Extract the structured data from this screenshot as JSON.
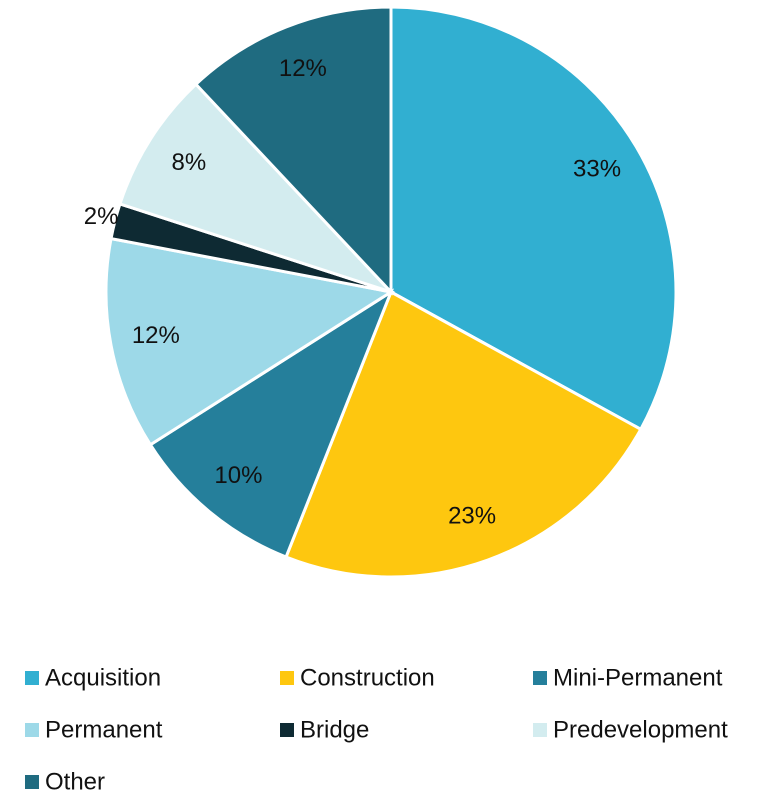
{
  "chart_data": {
    "type": "pie",
    "categories": [
      "Acquisition",
      "Construction",
      "Mini-Permanent",
      "Permanent",
      "Bridge",
      "Predevelopment",
      "Other"
    ],
    "values": [
      33,
      23,
      10,
      12,
      2,
      8,
      12
    ],
    "value_labels": [
      "33%",
      "23%",
      "10%",
      "12%",
      "2%",
      "8%",
      "12%"
    ],
    "colors": [
      "#31afd1",
      "#fec70f",
      "#257f9b",
      "#9dd9e8",
      "#0e2a33",
      "#d3ecef",
      "#1f6b80"
    ],
    "legend": "bottom"
  }
}
